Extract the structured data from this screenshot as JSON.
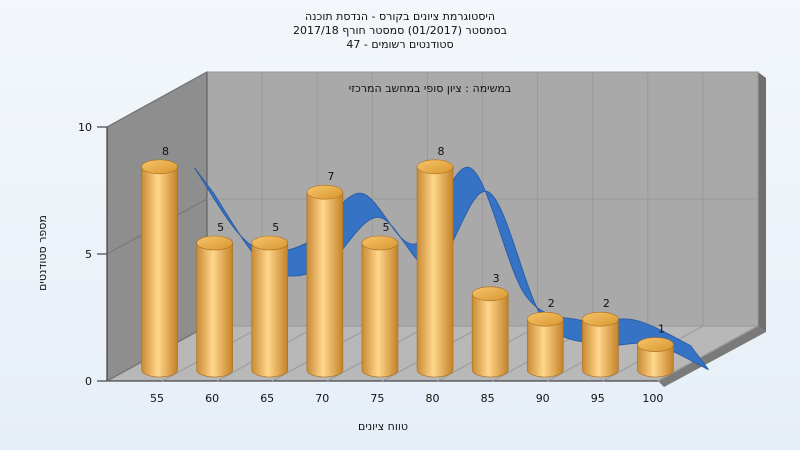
{
  "chart_data": {
    "type": "bar",
    "title_lines": [
      "היסטוגרמת ציונים בקורס - הנדסת תוכנה",
      "בסמסטר  (01/2017)  סמסטר חורף 2017/18",
      "סטודנטים רשומים - 47"
    ],
    "annotation": "במשימה : ציון סופי במחשב המרכזי",
    "xlabel": "טווח ציונים",
    "ylabel": "מספר סטודנטים",
    "categories": [
      "55",
      "60",
      "65",
      "70",
      "75",
      "80",
      "85",
      "90",
      "95",
      "100"
    ],
    "values": [
      8,
      5,
      5,
      7,
      5,
      8,
      3,
      2,
      2,
      1
    ],
    "ylim": [
      0,
      10
    ],
    "yticks": [
      0,
      5,
      10
    ],
    "colors": {
      "bar": "#e4a94c",
      "bar_dark": "#b97a22",
      "bar_light": "#ffd98e",
      "ribbon": "#3773c4",
      "wall": "#a9a9a9",
      "floor": "#b8b8b8"
    }
  }
}
